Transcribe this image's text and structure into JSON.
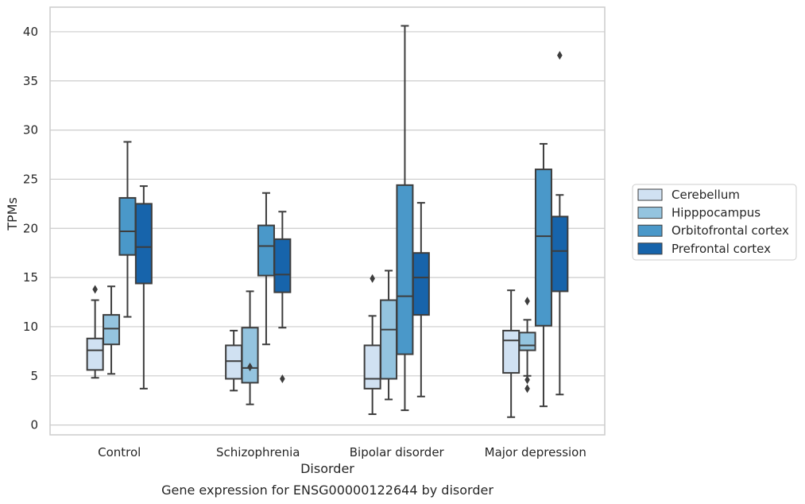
{
  "chart_data": {
    "type": "box",
    "xlabel": "Disorder",
    "ylabel": "TPMs",
    "caption": "Gene expression for ENSG00000122644 by disorder",
    "ylim": [
      -1,
      42.5
    ],
    "yticks": [
      0,
      5,
      10,
      15,
      20,
      25,
      30,
      35,
      40
    ],
    "grid": "horizontal",
    "legend_position": "right",
    "categories": [
      "Control",
      "Schizophrenia",
      "Bipolar disorder",
      "Major depression"
    ],
    "series": [
      {
        "name": "Cerebellum",
        "color": "#d0e1f2",
        "boxes": [
          {
            "whislo": 4.8,
            "q1": 5.6,
            "med": 7.6,
            "q3": 8.8,
            "whishi": 12.7,
            "fliers": [
              13.8
            ]
          },
          {
            "whislo": 3.5,
            "q1": 4.7,
            "med": 6.5,
            "q3": 8.1,
            "whishi": 9.6,
            "fliers": []
          },
          {
            "whislo": 1.1,
            "q1": 3.7,
            "med": 4.7,
            "q3": 8.1,
            "whishi": 11.1,
            "fliers": [
              14.9
            ]
          },
          {
            "whislo": 0.8,
            "q1": 5.3,
            "med": 8.6,
            "q3": 9.6,
            "whishi": 13.7,
            "fliers": []
          }
        ]
      },
      {
        "name": "Hipppocampus",
        "color": "#94c4df",
        "boxes": [
          {
            "whislo": 5.2,
            "q1": 8.2,
            "med": 9.8,
            "q3": 11.2,
            "whishi": 14.1,
            "fliers": []
          },
          {
            "whislo": 2.1,
            "q1": 4.3,
            "med": 5.8,
            "q3": 9.9,
            "whishi": 13.6,
            "fliers": [
              5.9
            ]
          },
          {
            "whislo": 2.6,
            "q1": 4.7,
            "med": 9.7,
            "q3": 12.7,
            "whishi": 15.7,
            "fliers": []
          },
          {
            "whislo": 5.0,
            "q1": 7.6,
            "med": 8.1,
            "q3": 9.4,
            "whishi": 10.7,
            "fliers": [
              12.6,
              4.6,
              3.7
            ]
          }
        ]
      },
      {
        "name": "Orbitofrontal cortex",
        "color": "#4a98c9",
        "boxes": [
          {
            "whislo": 11.0,
            "q1": 17.3,
            "med": 19.7,
            "q3": 23.1,
            "whishi": 28.8,
            "fliers": []
          },
          {
            "whislo": 8.2,
            "q1": 15.2,
            "med": 18.2,
            "q3": 20.3,
            "whishi": 23.6,
            "fliers": []
          },
          {
            "whislo": 1.5,
            "q1": 7.2,
            "med": 13.1,
            "q3": 24.4,
            "whishi": 40.6,
            "fliers": []
          },
          {
            "whislo": 1.9,
            "q1": 10.1,
            "med": 19.2,
            "q3": 26.0,
            "whishi": 28.6,
            "fliers": []
          }
        ]
      },
      {
        "name": "Prefrontal cortex",
        "color": "#1764ab",
        "boxes": [
          {
            "whislo": 3.7,
            "q1": 14.4,
            "med": 18.1,
            "q3": 22.5,
            "whishi": 24.3,
            "fliers": []
          },
          {
            "whislo": 9.9,
            "q1": 13.5,
            "med": 15.3,
            "q3": 18.9,
            "whishi": 21.7,
            "fliers": [
              4.7
            ]
          },
          {
            "whislo": 2.9,
            "q1": 11.2,
            "med": 15.0,
            "q3": 17.5,
            "whishi": 22.6,
            "fliers": []
          },
          {
            "whislo": 3.1,
            "q1": 13.6,
            "med": 17.7,
            "q3": 21.2,
            "whishi": 23.4,
            "fliers": [
              37.6
            ]
          }
        ]
      }
    ]
  }
}
